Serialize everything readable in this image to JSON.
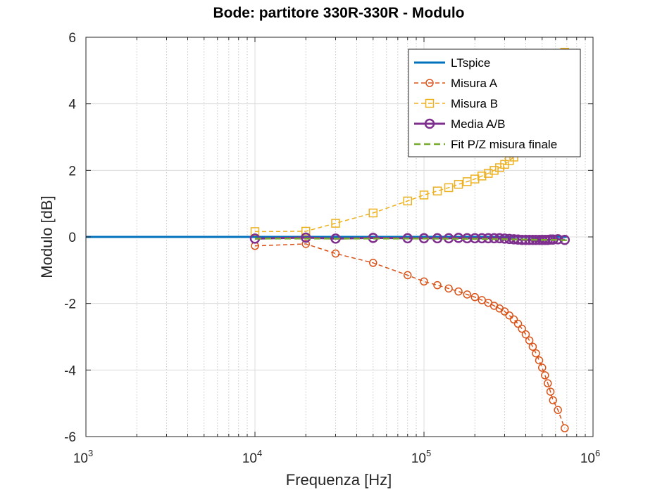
{
  "chart_data": {
    "type": "line",
    "title": "Bode: partitore 330R-330R - Modulo",
    "xlabel": "Frequenza [Hz]",
    "ylabel": "Modulo [dB]",
    "xscale": "log",
    "xlim": [
      1000,
      1000000
    ],
    "ylim": [
      -6,
      6
    ],
    "x_ticks": [
      {
        "base": "10",
        "exp": "3",
        "value": 1000
      },
      {
        "base": "10",
        "exp": "4",
        "value": 10000
      },
      {
        "base": "10",
        "exp": "5",
        "value": 100000
      },
      {
        "base": "10",
        "exp": "6",
        "value": 1000000
      }
    ],
    "y_ticks": [
      {
        "label": "-6",
        "value": -6
      },
      {
        "label": "-4",
        "value": -4
      },
      {
        "label": "-2",
        "value": -2
      },
      {
        "label": "0",
        "value": 0
      },
      {
        "label": "2",
        "value": 2
      },
      {
        "label": "4",
        "value": 4
      },
      {
        "label": "6",
        "value": 6
      }
    ],
    "grid": true,
    "legend_position": "top-right",
    "series": [
      {
        "name": "LTspice",
        "color": "#0072BD",
        "style": "solid",
        "marker": "none",
        "x": [
          1000,
          700000
        ],
        "y": [
          0,
          0
        ]
      },
      {
        "name": "Misura A",
        "color": "#D95319",
        "style": "dashed",
        "marker": "circle",
        "x": [
          10000,
          20000,
          30000,
          50000,
          80000,
          100000,
          120000,
          140000,
          160000,
          180000,
          200000,
          220000,
          240000,
          260000,
          280000,
          300000,
          320000,
          340000,
          360000,
          380000,
          400000,
          420000,
          440000,
          460000,
          480000,
          500000,
          520000,
          540000,
          560000,
          580000,
          620000,
          680000
        ],
        "y": [
          -0.27,
          -0.21,
          -0.5,
          -0.78,
          -1.15,
          -1.34,
          -1.45,
          -1.55,
          -1.64,
          -1.73,
          -1.81,
          -1.9,
          -1.98,
          -2.07,
          -2.15,
          -2.24,
          -2.36,
          -2.48,
          -2.61,
          -2.76,
          -2.93,
          -3.11,
          -3.3,
          -3.5,
          -3.71,
          -3.93,
          -4.16,
          -4.4,
          -4.65,
          -4.91,
          -5.2,
          -5.75
        ]
      },
      {
        "name": "Misura B",
        "color": "#EDB120",
        "style": "dashed",
        "marker": "square",
        "x": [
          10000,
          20000,
          30000,
          50000,
          80000,
          100000,
          120000,
          140000,
          160000,
          180000,
          200000,
          220000,
          240000,
          260000,
          280000,
          300000,
          320000,
          340000,
          680000
        ],
        "y": [
          0.16,
          0.17,
          0.41,
          0.72,
          1.08,
          1.26,
          1.38,
          1.48,
          1.58,
          1.66,
          1.74,
          1.83,
          1.91,
          2.0,
          2.08,
          2.18,
          2.29,
          2.4,
          5.55
        ]
      },
      {
        "name": "Media A/B",
        "color": "#7E2F8E",
        "style": "solid",
        "marker": "circle",
        "x": [
          10000,
          20000,
          30000,
          50000,
          80000,
          100000,
          120000,
          140000,
          160000,
          180000,
          200000,
          220000,
          240000,
          260000,
          280000,
          300000,
          320000,
          340000,
          360000,
          380000,
          400000,
          420000,
          440000,
          460000,
          480000,
          500000,
          520000,
          540000,
          560000,
          580000,
          620000,
          680000
        ],
        "y": [
          -0.05,
          -0.02,
          -0.05,
          -0.03,
          -0.04,
          -0.04,
          -0.04,
          -0.04,
          -0.03,
          -0.04,
          -0.04,
          -0.04,
          -0.04,
          -0.04,
          -0.04,
          -0.05,
          -0.06,
          -0.07,
          -0.08,
          -0.09,
          -0.09,
          -0.09,
          -0.09,
          -0.09,
          -0.09,
          -0.09,
          -0.09,
          -0.09,
          -0.08,
          -0.08,
          -0.07,
          -0.09
        ]
      },
      {
        "name": "Fit P/Z misura finale",
        "color": "#77AC30",
        "style": "dashed",
        "marker": "none",
        "x": [
          10000,
          20000,
          50000,
          100000,
          200000,
          300000,
          400000,
          500000,
          600000,
          700000
        ],
        "y": [
          -0.05,
          -0.05,
          -0.05,
          -0.05,
          -0.06,
          -0.07,
          -0.08,
          -0.09,
          -0.09,
          -0.1
        ]
      }
    ]
  }
}
